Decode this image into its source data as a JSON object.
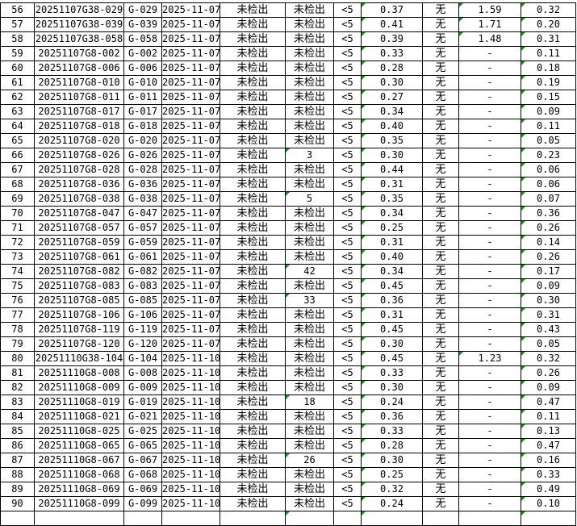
{
  "sheet": {
    "accent_comment_color": "#1a8a1a",
    "rows": [
      [
        "56",
        "20251107G38-029",
        "G-029",
        "2025-11-07",
        "未检出",
        "未检出",
        "<5",
        "0.37",
        "无",
        "1.59",
        "0.32"
      ],
      [
        "57",
        "20251107G38-039",
        "G-039",
        "2025-11-07",
        "未检出",
        "未检出",
        "<5",
        "0.41",
        "无",
        "1.71",
        "0.20"
      ],
      [
        "58",
        "20251107G38-058",
        "G-058",
        "2025-11-07",
        "未检出",
        "未检出",
        "<5",
        "0.39",
        "无",
        "1.48",
        "0.31"
      ],
      [
        "59",
        "20251107G8-002",
        "G-002",
        "2025-11-07",
        "未检出",
        "未检出",
        "<5",
        "0.33",
        "无",
        "-",
        "0.11"
      ],
      [
        "60",
        "20251107G8-006",
        "G-006",
        "2025-11-07",
        "未检出",
        "未检出",
        "<5",
        "0.28",
        "无",
        "-",
        "0.18"
      ],
      [
        "61",
        "20251107G8-010",
        "G-010",
        "2025-11-07",
        "未检出",
        "未检出",
        "<5",
        "0.30",
        "无",
        "-",
        "0.19"
      ],
      [
        "62",
        "20251107G8-011",
        "G-011",
        "2025-11-07",
        "未检出",
        "未检出",
        "<5",
        "0.27",
        "无",
        "-",
        "0.15"
      ],
      [
        "63",
        "20251107G8-017",
        "G-017",
        "2025-11-07",
        "未检出",
        "未检出",
        "<5",
        "0.34",
        "无",
        "-",
        "0.09"
      ],
      [
        "64",
        "20251107G8-018",
        "G-018",
        "2025-11-07",
        "未检出",
        "未检出",
        "<5",
        "0.40",
        "无",
        "-",
        "0.11"
      ],
      [
        "65",
        "20251107G8-020",
        "G-020",
        "2025-11-07",
        "未检出",
        "未检出",
        "<5",
        "0.35",
        "无",
        "-",
        "0.05"
      ],
      [
        "66",
        "20251107G8-026",
        "G-026",
        "2025-11-07",
        "未检出",
        "3",
        "<5",
        "0.30",
        "无",
        "-",
        "0.23"
      ],
      [
        "67",
        "20251107G8-028",
        "G-028",
        "2025-11-07",
        "未检出",
        "未检出",
        "<5",
        "0.44",
        "无",
        "-",
        "0.06"
      ],
      [
        "68",
        "20251107G8-036",
        "G-036",
        "2025-11-07",
        "未检出",
        "未检出",
        "<5",
        "0.31",
        "无",
        "-",
        "0.06"
      ],
      [
        "69",
        "20251107G8-038",
        "G-038",
        "2025-11-07",
        "未检出",
        "5",
        "<5",
        "0.35",
        "无",
        "-",
        "0.07"
      ],
      [
        "70",
        "20251107G8-047",
        "G-047",
        "2025-11-07",
        "未检出",
        "未检出",
        "<5",
        "0.34",
        "无",
        "-",
        "0.36"
      ],
      [
        "71",
        "20251107G8-057",
        "G-057",
        "2025-11-07",
        "未检出",
        "未检出",
        "<5",
        "0.25",
        "无",
        "-",
        "0.26"
      ],
      [
        "72",
        "20251107G8-059",
        "G-059",
        "2025-11-07",
        "未检出",
        "未检出",
        "<5",
        "0.31",
        "无",
        "-",
        "0.14"
      ],
      [
        "73",
        "20251107G8-061",
        "G-061",
        "2025-11-07",
        "未检出",
        "未检出",
        "<5",
        "0.40",
        "无",
        "-",
        "0.26"
      ],
      [
        "74",
        "20251107G8-082",
        "G-082",
        "2025-11-07",
        "未检出",
        "42",
        "<5",
        "0.34",
        "无",
        "-",
        "0.17"
      ],
      [
        "75",
        "20251107G8-083",
        "G-083",
        "2025-11-07",
        "未检出",
        "未检出",
        "<5",
        "0.45",
        "无",
        "-",
        "0.09"
      ],
      [
        "76",
        "20251107G8-085",
        "G-085",
        "2025-11-07",
        "未检出",
        "33",
        "<5",
        "0.36",
        "无",
        "-",
        "0.30"
      ],
      [
        "77",
        "20251107G8-106",
        "G-106",
        "2025-11-07",
        "未检出",
        "未检出",
        "<5",
        "0.31",
        "无",
        "-",
        "0.31"
      ],
      [
        "78",
        "20251107G8-119",
        "G-119",
        "2025-11-07",
        "未检出",
        "未检出",
        "<5",
        "0.45",
        "无",
        "-",
        "0.43"
      ],
      [
        "79",
        "20251107G8-120",
        "G-120",
        "2025-11-07",
        "未检出",
        "未检出",
        "<5",
        "0.30",
        "无",
        "-",
        "0.05"
      ],
      [
        "80",
        "20251110G38-104",
        "G-104",
        "2025-11-10",
        "未检出",
        "未检出",
        "<5",
        "0.45",
        "无",
        "1.23",
        "0.32"
      ],
      [
        "81",
        "20251110G8-008",
        "G-008",
        "2025-11-10",
        "未检出",
        "未检出",
        "<5",
        "0.33",
        "无",
        "-",
        "0.26"
      ],
      [
        "82",
        "20251110G8-009",
        "G-009",
        "2025-11-10",
        "未检出",
        "未检出",
        "<5",
        "0.30",
        "无",
        "-",
        "0.09"
      ],
      [
        "83",
        "20251110G8-019",
        "G-019",
        "2025-11-10",
        "未检出",
        "18",
        "<5",
        "0.24",
        "无",
        "-",
        "0.47"
      ],
      [
        "84",
        "20251110G8-021",
        "G-021",
        "2025-11-10",
        "未检出",
        "未检出",
        "<5",
        "0.36",
        "无",
        "-",
        "0.11"
      ],
      [
        "85",
        "20251110G8-025",
        "G-025",
        "2025-11-10",
        "未检出",
        "未检出",
        "<5",
        "0.33",
        "无",
        "-",
        "0.13"
      ],
      [
        "86",
        "20251110G8-065",
        "G-065",
        "2025-11-10",
        "未检出",
        "未检出",
        "<5",
        "0.28",
        "无",
        "-",
        "0.47"
      ],
      [
        "87",
        "20251110G8-067",
        "G-067",
        "2025-11-10",
        "未检出",
        "26",
        "<5",
        "0.30",
        "无",
        "-",
        "0.16"
      ],
      [
        "88",
        "20251110G8-068",
        "G-068",
        "2025-11-10",
        "未检出",
        "未检出",
        "<5",
        "0.25",
        "无",
        "-",
        "0.33"
      ],
      [
        "89",
        "20251110G8-069",
        "G-069",
        "2025-11-10",
        "未检出",
        "未检出",
        "<5",
        "0.32",
        "无",
        "-",
        "0.49"
      ],
      [
        "90",
        "20251110G8-099",
        "G-099",
        "2025-11-10",
        "未检出",
        "未检出",
        "<5",
        "0.24",
        "无",
        "-",
        "0.10"
      ]
    ]
  }
}
